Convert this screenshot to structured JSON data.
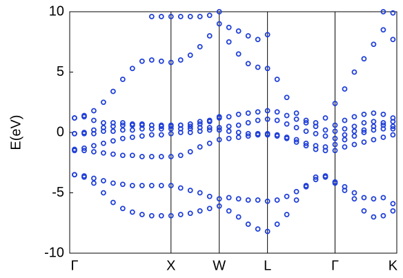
{
  "chart_data": {
    "type": "scatter",
    "ylabel": "E(eV)",
    "color": "#1f3fd8",
    "xlim": [
      -0.05,
      3.34
    ],
    "ylim": [
      -10,
      10
    ],
    "yticks": [
      -10,
      -5,
      0,
      5,
      10
    ],
    "xticks": [
      {
        "value": 0,
        "label": "Γ"
      },
      {
        "value": 1,
        "label": "X"
      },
      {
        "value": 1.5,
        "label": "W"
      },
      {
        "value": 2,
        "label": "L"
      },
      {
        "value": 2.7,
        "label": "Γ"
      },
      {
        "value": 3.3,
        "label": "K"
      }
    ],
    "xgrid": true,
    "x": [
      0,
      0.1,
      0.2,
      0.3,
      0.4,
      0.5,
      0.6,
      0.7,
      0.8,
      0.9,
      1,
      1.1,
      1.2,
      1.3,
      1.4,
      1.5,
      1.6,
      1.7,
      1.8,
      1.9,
      2,
      2.1,
      2.2,
      2.3,
      2.4,
      2.5,
      2.6,
      2.7,
      2.8,
      2.9,
      3,
      3.1,
      3.2,
      3.3
    ],
    "series": [
      {
        "values": [
          -3.5,
          -3.7,
          -4.2,
          -5.0,
          -5.8,
          -6.3,
          -6.6,
          -6.8,
          -6.9,
          -6.9,
          -6.9,
          -6.8,
          -6.7,
          -6.5,
          -6.3,
          -6.1,
          -6.5,
          -7.0,
          -7.6,
          -8.0,
          -8.2,
          -7.6,
          -6.8,
          -5.6,
          -4.5,
          -3.7,
          -3.6,
          -4.1,
          -4.8,
          -5.5,
          -6.5,
          -7.0,
          -6.9,
          -6.5
        ]
      },
      {
        "values": [
          -3.5,
          -3.6,
          -3.8,
          -4.0,
          -4.2,
          -4.3,
          -4.4,
          -4.4,
          -4.4,
          -4.4,
          -4.4,
          -4.6,
          -4.8,
          -5.0,
          -5.3,
          -5.5,
          -5.4,
          -5.5,
          -5.6,
          -5.6,
          -5.7,
          -5.6,
          -5.3,
          -4.9,
          -4.4,
          -3.9,
          -3.7,
          -4.2,
          -4.5,
          -5.0,
          -5.4,
          -5.5,
          -5.4,
          -5.9
        ]
      },
      {
        "values": [
          -1.5,
          -1.5,
          -1.6,
          -1.7,
          -1.8,
          -1.9,
          -1.9,
          -2.0,
          -2.0,
          -2.0,
          -2.0,
          -1.9,
          -1.6,
          -1.2,
          -0.9,
          -0.6,
          -0.5,
          -0.4,
          -0.3,
          -0.2,
          -0.2,
          -0.3,
          -0.5,
          -0.8,
          -1.1,
          -1.4,
          -1.5,
          -1.5,
          -1.2,
          -1.0,
          -0.8,
          -0.6,
          -0.4,
          -0.2
        ]
      },
      {
        "values": [
          -1.4,
          -1.3,
          -1.1,
          -0.9,
          -0.7,
          -0.5,
          -0.4,
          -0.3,
          -0.2,
          -0.2,
          -0.1,
          0.0,
          0.0,
          0.1,
          0.2,
          0.2,
          0.1,
          0.0,
          -0.1,
          -0.1,
          -0.1,
          -0.2,
          -0.4,
          -0.6,
          -0.9,
          -1.1,
          -1.2,
          -1.0,
          -0.6,
          -0.3,
          0.0,
          0.2,
          0.3,
          0.3
        ]
      },
      {
        "values": [
          -0.1,
          0.0,
          0.2,
          0.4,
          0.5,
          0.6,
          0.6,
          0.6,
          0.6,
          0.5,
          0.5,
          0.6,
          0.7,
          0.9,
          1.0,
          1.2,
          1.3,
          1.5,
          1.6,
          1.7,
          1.8,
          1.7,
          1.4,
          1.1,
          0.8,
          0.5,
          0.2,
          0.1,
          0.3,
          0.5,
          0.8,
          0.9,
          0.8,
          0.9
        ]
      },
      {
        "values": [
          -0.1,
          -0.1,
          -0.1,
          0.1,
          0.1,
          0.2,
          0.2,
          0.3,
          0.3,
          0.3,
          0.3,
          0.3,
          0.3,
          0.4,
          0.4,
          0.4,
          0.5,
          0.6,
          0.8,
          1.0,
          1.1,
          1.0,
          0.7,
          0.4,
          0.1,
          -0.1,
          -0.3,
          -0.5,
          -0.2,
          0.1,
          0.2,
          0.5,
          0.6,
          0.5
        ]
      },
      {
        "values": [
          1.2,
          1.3,
          1.0,
          0.8,
          0.8,
          0.8,
          0.7,
          0.7,
          0.6,
          0.6,
          0.6,
          0.6,
          0.5,
          0.7,
          0.9,
          1.3,
          null,
          null,
          null,
          null,
          null,
          null,
          null,
          null,
          null,
          null,
          null,
          0.6,
          1.0,
          1.3,
          1.5,
          1.6,
          1.5,
          1.2
        ]
      },
      {
        "values": [
          1.2,
          1.4,
          1.8,
          2.5,
          3.4,
          4.4,
          5.3,
          5.9,
          6.0,
          5.9,
          5.8,
          6.0,
          6.4,
          7.1,
          8.0,
          9.0,
          7.5,
          6.5,
          5.7,
          5.4,
          5.3,
          4.4,
          2.9,
          1.6,
          1.0,
          0.8,
          1.2,
          2.4,
          3.6,
          5.0,
          6.1,
          7.3,
          8.5,
          7.7
        ]
      },
      {
        "values": [
          null,
          null,
          null,
          null,
          null,
          null,
          null,
          null,
          9.6,
          9.6,
          9.6,
          9.6,
          9.6,
          9.6,
          9.7,
          10.0,
          8.7,
          8.4,
          8.0,
          7.7,
          8.1,
          null,
          null,
          null,
          null,
          null,
          null,
          null,
          null,
          null,
          null,
          null,
          10.0,
          9.9
        ]
      }
    ]
  }
}
